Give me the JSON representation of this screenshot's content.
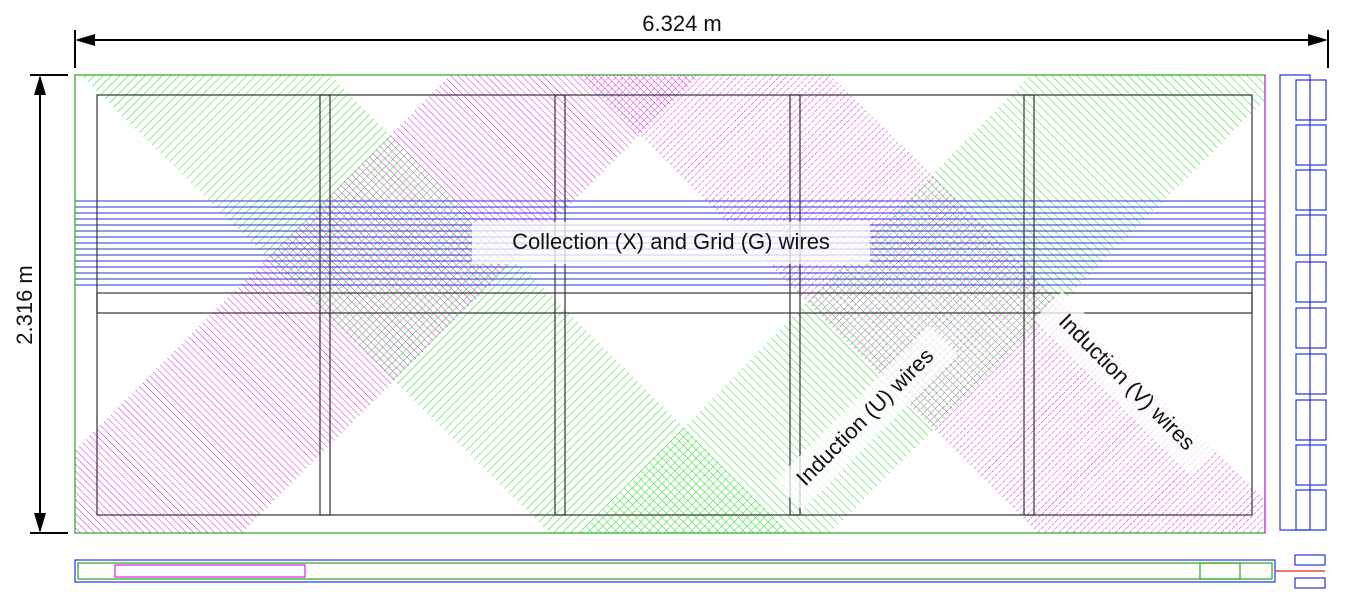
{
  "dimensions": {
    "width": "6.324 m",
    "height": "2.316 m"
  },
  "labels": {
    "collection": "Collection (X) and Grid (G) wires",
    "induction_u": "Induction (U) wires",
    "induction_v": "Induction (V) wires"
  }
}
